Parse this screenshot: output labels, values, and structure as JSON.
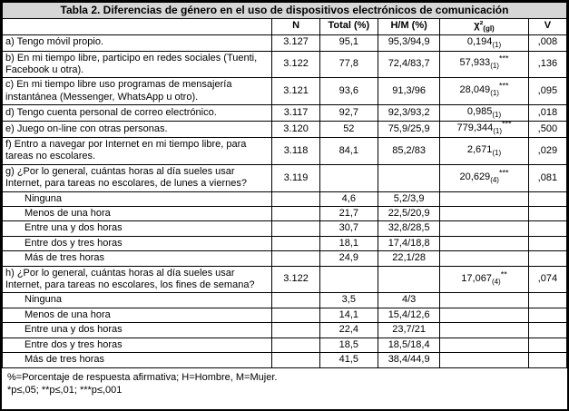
{
  "title": "Tabla 2. Diferencias de género en el uso de dispositivos electrónicos de comunicación",
  "columns": {
    "item": "",
    "n": "N",
    "total": "Total (%)",
    "hm": "H/M (%)",
    "chi": "χ²",
    "chi_sub": "(gl)",
    "v": "V"
  },
  "rows": [
    {
      "label": "a) Tengo móvil propio.",
      "indent": false,
      "n": "3.127",
      "total": "95,1",
      "hm": "95,3/94,9",
      "chi": "0,194",
      "chi_sub": "(1)",
      "chi_sup": "",
      "v": ",008"
    },
    {
      "label": "b) En mi tiempo libre, participo en redes sociales (Tuenti, Facebook u otra).",
      "indent": false,
      "n": "3.122",
      "total": "77,8",
      "hm": "72,4/83,7",
      "chi": "57,933",
      "chi_sub": "(1)",
      "chi_sup": "***",
      "v": ",136"
    },
    {
      "label": "c) En mi tiempo libre uso programas de mensajería instantánea (Messenger, WhatsApp u otro).",
      "indent": false,
      "n": "3.121",
      "total": "93,6",
      "hm": "91,3/96",
      "chi": "28,049",
      "chi_sub": "(1)",
      "chi_sup": "***",
      "v": ",095"
    },
    {
      "label": "d) Tengo cuenta personal de correo electrónico.",
      "indent": false,
      "n": "3.117",
      "total": "92,7",
      "hm": "92,3/93,2",
      "chi": "0,985",
      "chi_sub": "(1)",
      "chi_sup": "",
      "v": ",018"
    },
    {
      "label": "e) Juego on-line con otras personas.",
      "indent": false,
      "n": "3.120",
      "total": "52",
      "hm": "75,9/25,9",
      "chi": "779,344",
      "chi_sub": "(1)",
      "chi_sup": "***",
      "v": ",500"
    },
    {
      "label": "f) Entro a navegar por Internet en mi tiempo libre, para tareas no escolares.",
      "indent": false,
      "n": "3.118",
      "total": "84,1",
      "hm": "85,2/83",
      "chi": "2,671",
      "chi_sub": "(1)",
      "chi_sup": "",
      "v": ",029"
    },
    {
      "label": "g) ¿Por lo general, cuántas horas al día sueles usar Internet, para tareas no escolares, de lunes a viernes?",
      "indent": false,
      "n": "3.119",
      "total": "",
      "hm": "",
      "chi": "20,629",
      "chi_sub": "(4)",
      "chi_sup": "***",
      "v": ",081"
    },
    {
      "label": "Ninguna",
      "indent": true,
      "n": "",
      "total": "4,6",
      "hm": "5,2/3,9",
      "chi": "",
      "chi_sub": "",
      "chi_sup": "",
      "v": ""
    },
    {
      "label": "Menos de una hora",
      "indent": true,
      "n": "",
      "total": "21,7",
      "hm": "22,5/20,9",
      "chi": "",
      "chi_sub": "",
      "chi_sup": "",
      "v": ""
    },
    {
      "label": "Entre una y dos horas",
      "indent": true,
      "n": "",
      "total": "30,7",
      "hm": "32,8/28,5",
      "chi": "",
      "chi_sub": "",
      "chi_sup": "",
      "v": ""
    },
    {
      "label": "Entre dos y tres horas",
      "indent": true,
      "n": "",
      "total": "18,1",
      "hm": "17,4/18,8",
      "chi": "",
      "chi_sub": "",
      "chi_sup": "",
      "v": ""
    },
    {
      "label": "Más de tres horas",
      "indent": true,
      "n": "",
      "total": "24,9",
      "hm": "22,1/28",
      "chi": "",
      "chi_sub": "",
      "chi_sup": "",
      "v": ""
    },
    {
      "label": "h) ¿Por lo general, cuántas horas al día sueles usar Internet, para tareas no escolares, los fines de semana?",
      "indent": false,
      "n": "3.122",
      "total": "",
      "hm": "",
      "chi": "17,067",
      "chi_sub": "(4)",
      "chi_sup": "**",
      "v": ",074"
    },
    {
      "label": "Ninguna",
      "indent": true,
      "n": "",
      "total": "3,5",
      "hm": "4/3",
      "chi": "",
      "chi_sub": "",
      "chi_sup": "",
      "v": ""
    },
    {
      "label": "Menos de una hora",
      "indent": true,
      "n": "",
      "total": "14,1",
      "hm": "15,4/12,6",
      "chi": "",
      "chi_sub": "",
      "chi_sup": "",
      "v": ""
    },
    {
      "label": "Entre una y dos horas",
      "indent": true,
      "n": "",
      "total": "22,4",
      "hm": "23,7/21",
      "chi": "",
      "chi_sub": "",
      "chi_sup": "",
      "v": ""
    },
    {
      "label": "Entre dos y tres horas",
      "indent": true,
      "n": "",
      "total": "18,5",
      "hm": "18,5/18,4",
      "chi": "",
      "chi_sub": "",
      "chi_sup": "",
      "v": ""
    },
    {
      "label": "Más de tres horas",
      "indent": true,
      "n": "",
      "total": "41,5",
      "hm": "38,4/44,9",
      "chi": "",
      "chi_sub": "",
      "chi_sup": "",
      "v": ""
    }
  ],
  "footnotes": [
    "%=Porcentaje de respuesta afirmativa; H=Hombre, M=Mujer.",
    "*p≤,05; **p≤,01; ***p≤,001"
  ]
}
